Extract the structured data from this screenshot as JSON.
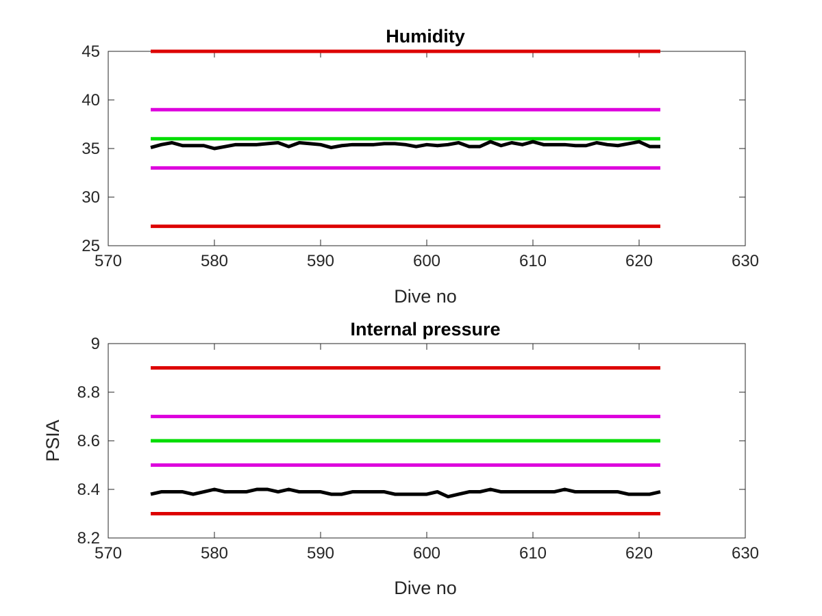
{
  "chart_data": [
    {
      "type": "line",
      "title": "Humidity",
      "xlabel": "Dive no",
      "ylabel": "",
      "xlim": [
        570,
        630
      ],
      "ylim": [
        25,
        45
      ],
      "xticks": [
        570,
        580,
        590,
        600,
        610,
        620,
        630
      ],
      "xtick_labels": [
        "570",
        "580",
        "590",
        "600",
        "610",
        "620",
        "630"
      ],
      "yticks": [
        25,
        30,
        35,
        40,
        45
      ],
      "ytick_labels": [
        "25",
        "30",
        "35",
        "40",
        "45"
      ],
      "grid": false,
      "series": [
        {
          "color": "#dd0000",
          "x": [
            574,
            622
          ],
          "y": [
            45,
            45
          ]
        },
        {
          "color": "#dd00dd",
          "x": [
            574,
            622
          ],
          "y": [
            39,
            39
          ]
        },
        {
          "color": "#00dd00",
          "x": [
            574,
            622
          ],
          "y": [
            36,
            36
          ]
        },
        {
          "color": "#dd00dd",
          "x": [
            574,
            622
          ],
          "y": [
            33,
            33
          ]
        },
        {
          "color": "#dd0000",
          "x": [
            574,
            622
          ],
          "y": [
            27,
            27
          ]
        },
        {
          "color": "#000000",
          "x": [
            574,
            575,
            576,
            577,
            578,
            579,
            580,
            581,
            582,
            583,
            584,
            585,
            586,
            587,
            588,
            589,
            590,
            591,
            592,
            593,
            594,
            595,
            596,
            597,
            598,
            599,
            600,
            601,
            602,
            603,
            604,
            605,
            606,
            607,
            608,
            609,
            610,
            611,
            612,
            613,
            614,
            615,
            616,
            617,
            618,
            619,
            620,
            621,
            622
          ],
          "y": [
            35.1,
            35.4,
            35.6,
            35.3,
            35.3,
            35.3,
            35.0,
            35.2,
            35.4,
            35.4,
            35.4,
            35.5,
            35.6,
            35.2,
            35.6,
            35.5,
            35.4,
            35.1,
            35.3,
            35.4,
            35.4,
            35.4,
            35.5,
            35.5,
            35.4,
            35.2,
            35.4,
            35.3,
            35.4,
            35.6,
            35.2,
            35.2,
            35.7,
            35.3,
            35.6,
            35.4,
            35.7,
            35.4,
            35.4,
            35.4,
            35.3,
            35.3,
            35.6,
            35.4,
            35.3,
            35.5,
            35.7,
            35.2,
            35.2
          ]
        }
      ]
    },
    {
      "type": "line",
      "title": "Internal pressure",
      "xlabel": "Dive no",
      "ylabel": "PSIA",
      "xlim": [
        570,
        630
      ],
      "ylim": [
        8.2,
        9
      ],
      "xticks": [
        570,
        580,
        590,
        600,
        610,
        620,
        630
      ],
      "xtick_labels": [
        "570",
        "580",
        "590",
        "600",
        "610",
        "620",
        "630"
      ],
      "yticks": [
        8.2,
        8.4,
        8.6,
        8.8,
        9
      ],
      "ytick_labels": [
        "8.2",
        "8.4",
        "8.6",
        "8.8",
        "9"
      ],
      "grid": false,
      "series": [
        {
          "color": "#dd0000",
          "x": [
            574,
            622
          ],
          "y": [
            8.9,
            8.9
          ]
        },
        {
          "color": "#dd00dd",
          "x": [
            574,
            622
          ],
          "y": [
            8.7,
            8.7
          ]
        },
        {
          "color": "#00dd00",
          "x": [
            574,
            622
          ],
          "y": [
            8.6,
            8.6
          ]
        },
        {
          "color": "#dd00dd",
          "x": [
            574,
            622
          ],
          "y": [
            8.5,
            8.5
          ]
        },
        {
          "color": "#dd0000",
          "x": [
            574,
            622
          ],
          "y": [
            8.3,
            8.3
          ]
        },
        {
          "color": "#000000",
          "x": [
            574,
            575,
            576,
            577,
            578,
            579,
            580,
            581,
            582,
            583,
            584,
            585,
            586,
            587,
            588,
            589,
            590,
            591,
            592,
            593,
            594,
            595,
            596,
            597,
            598,
            599,
            600,
            601,
            602,
            603,
            604,
            605,
            606,
            607,
            608,
            609,
            610,
            611,
            612,
            613,
            614,
            615,
            616,
            617,
            618,
            619,
            620,
            621,
            622
          ],
          "y": [
            8.38,
            8.39,
            8.39,
            8.39,
            8.38,
            8.39,
            8.4,
            8.39,
            8.39,
            8.39,
            8.4,
            8.4,
            8.39,
            8.4,
            8.39,
            8.39,
            8.39,
            8.38,
            8.38,
            8.39,
            8.39,
            8.39,
            8.39,
            8.38,
            8.38,
            8.38,
            8.38,
            8.39,
            8.37,
            8.38,
            8.39,
            8.39,
            8.4,
            8.39,
            8.39,
            8.39,
            8.39,
            8.39,
            8.39,
            8.4,
            8.39,
            8.39,
            8.39,
            8.39,
            8.39,
            8.38,
            8.38,
            8.38,
            8.39
          ]
        }
      ]
    }
  ]
}
